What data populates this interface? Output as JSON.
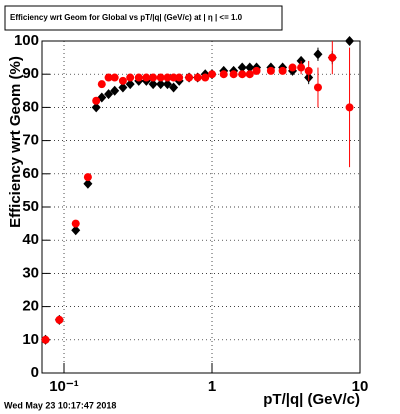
{
  "chart_data": {
    "type": "scatter",
    "title": "Efficiency wrt Geom for Global vs pT/|q| (GeV/c) at | η | <= 1.0",
    "x_label": "pT/|q| (GeV/c)",
    "y_label": "Efficiency wrt Geom (%)",
    "footer": "Wed May 23 10:17:47 2018",
    "x": [
      0.075,
      0.093,
      0.12,
      0.145,
      0.165,
      0.18,
      0.2,
      0.22,
      0.25,
      0.28,
      0.32,
      0.36,
      0.4,
      0.45,
      0.5,
      0.55,
      0.6,
      0.7,
      0.8,
      0.9,
      1.0,
      1.2,
      1.4,
      1.6,
      1.8,
      2.0,
      2.5,
      3.0,
      3.5,
      4.0,
      4.5,
      5.2,
      6.5,
      8.5
    ],
    "series": [
      {
        "name": "Global (black)",
        "color": "#000000",
        "marker": "diamond",
        "values": [
          10,
          16,
          43,
          57,
          80,
          83,
          84,
          85,
          86,
          87,
          88,
          88,
          87,
          87,
          87,
          86,
          88,
          89,
          89,
          90,
          90,
          91,
          91,
          92,
          92,
          92,
          92,
          92,
          91,
          94,
          89,
          96,
          95,
          100
        ],
        "errors": [
          1,
          1,
          1,
          1,
          1,
          1,
          1,
          1,
          1,
          1,
          1,
          1,
          1,
          1,
          1,
          1,
          1,
          1,
          1,
          1,
          1,
          1,
          1,
          1,
          1,
          1,
          1,
          1,
          1,
          1,
          2,
          2,
          2,
          1
        ]
      },
      {
        "name": "Global (red)",
        "color": "#ff0000",
        "marker": "circle",
        "values": [
          10,
          16,
          45,
          59,
          82,
          87,
          89,
          89,
          88,
          89,
          89,
          89,
          89,
          89,
          89,
          89,
          89,
          89,
          89,
          89,
          90,
          90,
          90,
          90,
          90,
          91,
          91,
          91,
          92,
          92,
          91,
          86,
          95,
          80
        ],
        "errors": [
          1,
          1,
          1,
          1,
          1,
          1,
          1,
          1,
          1,
          1,
          1,
          1,
          1,
          1,
          1,
          1,
          1,
          1,
          1,
          1,
          1,
          1,
          1,
          1,
          1,
          1,
          1,
          1,
          1,
          2,
          3,
          6,
          5,
          18
        ]
      }
    ],
    "xlog": true,
    "xlim": [
      0.071,
      10
    ],
    "xticks": [
      {
        "value": 0.1,
        "label": "10⁻¹"
      },
      1,
      10
    ],
    "ylim": [
      0,
      100
    ],
    "yticks": [
      0,
      10,
      20,
      30,
      40,
      50,
      60,
      70,
      80,
      90,
      100
    ],
    "grid": true
  }
}
